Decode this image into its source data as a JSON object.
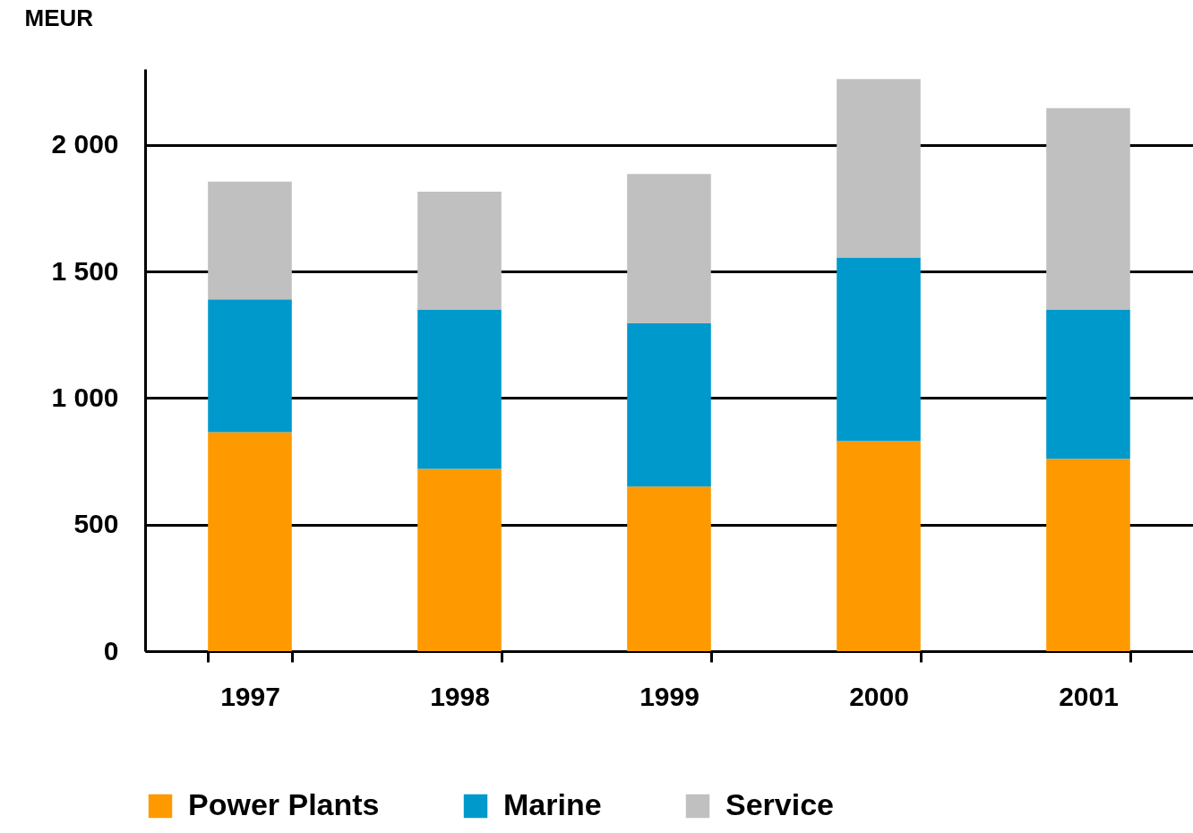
{
  "chart_data": {
    "type": "bar",
    "stacked": true,
    "ylabel": "MEUR",
    "categories": [
      "1997",
      "1998",
      "1999",
      "2000",
      "2001"
    ],
    "series": [
      {
        "name": "Power Plants",
        "color": "#ff9900",
        "values": [
          865,
          720,
          650,
          830,
          760
        ]
      },
      {
        "name": "Marine",
        "color": "#0099cc",
        "values": [
          525,
          630,
          645,
          725,
          590
        ]
      },
      {
        "name": "Service",
        "color": "#c0c0c0",
        "values": [
          465,
          465,
          590,
          705,
          795
        ]
      }
    ],
    "ylim": [
      0,
      2300
    ],
    "yticks": [
      0,
      500,
      {
        "value": 1000,
        "label": "1 000"
      },
      {
        "value": 1500,
        "label": "1 500"
      },
      {
        "value": 2000,
        "label": "2 000"
      }
    ],
    "grid": "y",
    "legend": "bottom"
  }
}
